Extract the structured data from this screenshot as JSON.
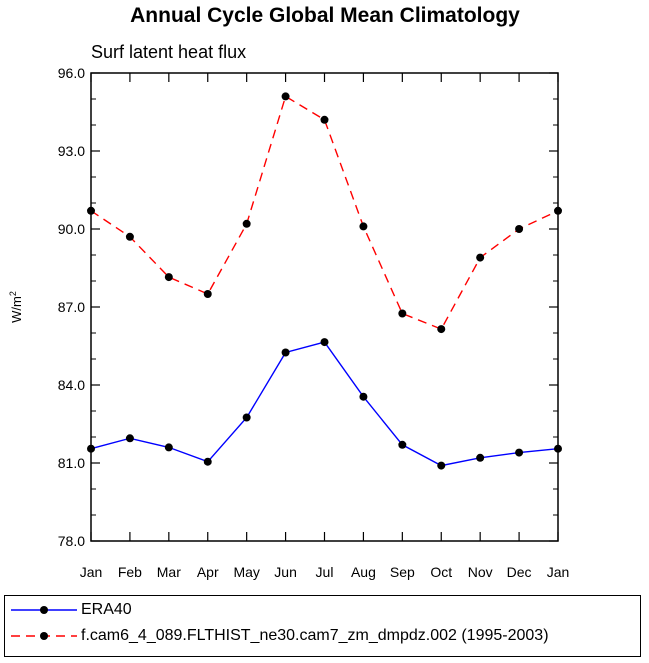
{
  "chart_data": {
    "type": "line",
    "title": "Annual Cycle Global Mean Climatology",
    "subtitle": "Surf latent heat flux",
    "ylabel": "W/m",
    "ylabel_sup": "2",
    "categories": [
      "Jan",
      "Feb",
      "Mar",
      "Apr",
      "May",
      "Jun",
      "Jul",
      "Aug",
      "Sep",
      "Oct",
      "Nov",
      "Dec",
      "Jan"
    ],
    "ylim": [
      78.0,
      96.0
    ],
    "yticks": [
      "78.0",
      "81.0",
      "84.0",
      "87.0",
      "90.0",
      "93.0",
      "96.0"
    ],
    "series": [
      {
        "name": "ERA40",
        "color": "#0000ff",
        "dash": "solid",
        "values": [
          81.55,
          81.95,
          81.6,
          81.05,
          82.75,
          85.25,
          85.65,
          83.55,
          81.7,
          80.9,
          81.2,
          81.4,
          81.55
        ]
      },
      {
        "name": "f.cam6_4_089.FLTHIST_ne30.cam7_zm_dmpdz.002 (1995-2003)",
        "color": "#ff0000",
        "dash": "dashed",
        "values": [
          90.7,
          89.7,
          88.15,
          87.5,
          90.2,
          95.1,
          94.2,
          90.1,
          86.75,
          86.15,
          88.9,
          90.0,
          90.7
        ]
      }
    ],
    "legend_position": "bottom",
    "grid": false
  }
}
